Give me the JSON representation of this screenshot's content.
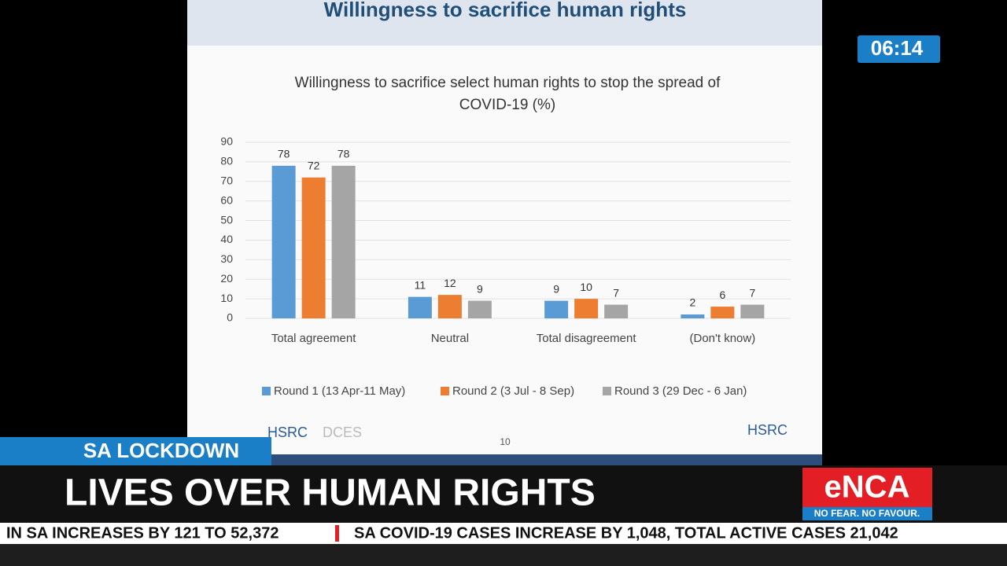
{
  "slide_title": "Willingness to sacrifice human rights",
  "chart_data": {
    "type": "bar",
    "title": "Willingness to sacrifice select human rights to stop the spread of COVID-19 (%)",
    "categories": [
      "Total agreement",
      "Neutral",
      "Total disagreement",
      "(Don't know)"
    ],
    "series": [
      {
        "name": "Round 1 (13 Apr-11 May)",
        "color": "#5b9bd5",
        "values": [
          78,
          11,
          9,
          2
        ]
      },
      {
        "name": "Round 2 (3 Jul - 8 Sep)",
        "color": "#ed7d31",
        "values": [
          72,
          12,
          10,
          6
        ]
      },
      {
        "name": "Round 3 (29 Dec - 6 Jan)",
        "color": "#a5a5a5",
        "values": [
          78,
          9,
          7,
          7
        ]
      }
    ],
    "ylim": [
      0,
      90
    ],
    "yticks": [
      0,
      10,
      20,
      30,
      40,
      50,
      60,
      70,
      80,
      90
    ],
    "grid": true,
    "legend": "bottom"
  },
  "page_number": "10",
  "logos": [
    "HSRC",
    "DCES",
    "HSRC"
  ],
  "clock": "06:14",
  "section": "SA LOCKDOWN",
  "headline": "LIVES OVER HUMAN RIGHTS",
  "brand": "eNCA",
  "slogan": "NO FEAR. NO FAVOUR.",
  "ticker": [
    "IN SA INCREASES BY 121 TO 52,372",
    "SA COVID-19 CASES INCREASE BY 1,048, TOTAL ACTIVE CASES 21,042"
  ]
}
